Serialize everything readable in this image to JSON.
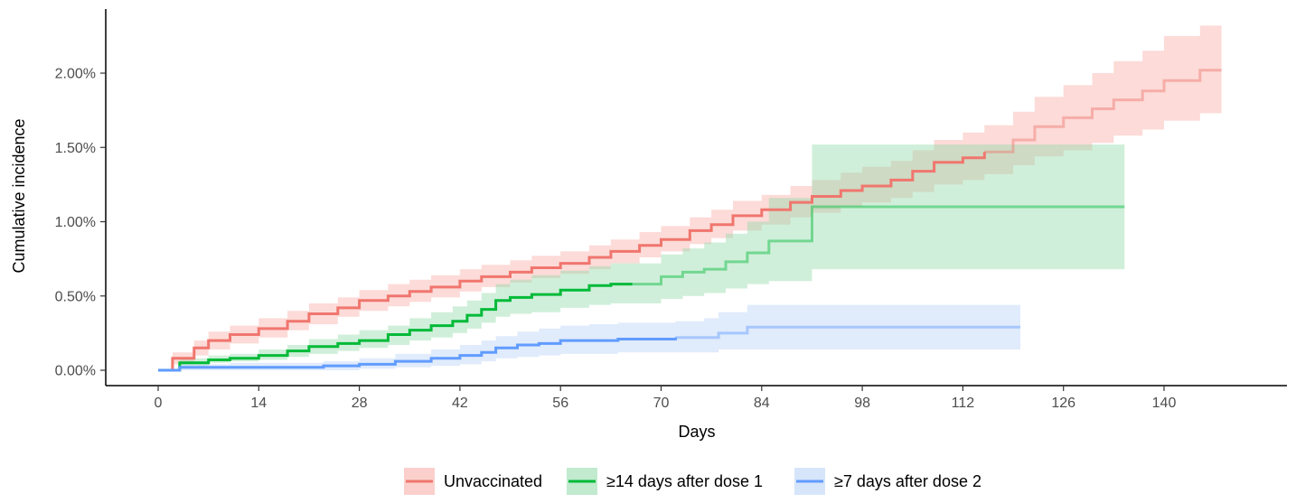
{
  "chart_data": {
    "type": "line",
    "subtype": "step-with-confidence-band",
    "xlabel": "Days",
    "ylabel": "Cumulative incidence",
    "xlim": [
      0,
      150
    ],
    "ylim": [
      -0.08,
      2.4
    ],
    "x_ticks": [
      0,
      14,
      28,
      42,
      56,
      70,
      84,
      98,
      112,
      126,
      140
    ],
    "y_ticks": [
      0,
      0.5,
      1.0,
      1.5,
      2.0
    ],
    "y_tick_labels": [
      "0.00%",
      "0.50%",
      "1.00%",
      "1.50%",
      "2.00%"
    ],
    "grid": false,
    "legend_position": "bottom",
    "series": [
      {
        "name": "Unvaccinated",
        "color": "#f0766e",
        "band_color": "#f8a9a3",
        "solid_until": 115,
        "x": [
          0,
          2,
          5,
          7,
          10,
          14,
          18,
          21,
          25,
          28,
          32,
          35,
          38,
          42,
          45,
          49,
          52,
          56,
          60,
          63,
          67,
          70,
          74,
          77,
          80,
          84,
          88,
          91,
          95,
          98,
          102,
          105,
          108,
          112,
          115,
          119,
          122,
          126,
          130,
          133,
          137,
          140,
          145,
          148
        ],
        "y": [
          0,
          0.08,
          0.15,
          0.2,
          0.24,
          0.28,
          0.33,
          0.38,
          0.42,
          0.47,
          0.5,
          0.53,
          0.56,
          0.6,
          0.63,
          0.66,
          0.69,
          0.72,
          0.76,
          0.8,
          0.84,
          0.88,
          0.94,
          0.98,
          1.04,
          1.08,
          1.13,
          1.17,
          1.21,
          1.24,
          1.28,
          1.34,
          1.4,
          1.43,
          1.47,
          1.55,
          1.64,
          1.7,
          1.76,
          1.82,
          1.88,
          1.95,
          2.02,
          2.02
        ],
        "lower": [
          0,
          0.04,
          0.1,
          0.14,
          0.18,
          0.22,
          0.27,
          0.31,
          0.36,
          0.4,
          0.43,
          0.46,
          0.49,
          0.53,
          0.56,
          0.59,
          0.62,
          0.65,
          0.68,
          0.72,
          0.76,
          0.8,
          0.85,
          0.89,
          0.94,
          0.98,
          1.03,
          1.06,
          1.1,
          1.13,
          1.16,
          1.2,
          1.25,
          1.28,
          1.32,
          1.38,
          1.44,
          1.48,
          1.53,
          1.58,
          1.62,
          1.68,
          1.73,
          1.73
        ],
        "upper": [
          0.01,
          0.12,
          0.2,
          0.26,
          0.3,
          0.35,
          0.4,
          0.45,
          0.49,
          0.54,
          0.58,
          0.61,
          0.64,
          0.68,
          0.71,
          0.74,
          0.77,
          0.8,
          0.84,
          0.88,
          0.93,
          0.97,
          1.03,
          1.08,
          1.14,
          1.18,
          1.24,
          1.28,
          1.33,
          1.37,
          1.41,
          1.48,
          1.55,
          1.6,
          1.65,
          1.74,
          1.84,
          1.92,
          2.0,
          2.08,
          2.15,
          2.25,
          2.32,
          2.32
        ]
      },
      {
        "name": "≥14 days after dose 1",
        "color": "#00ba38",
        "band_color": "#8ed9a6",
        "solid_until": 66,
        "x": [
          0,
          3,
          7,
          10,
          14,
          18,
          21,
          25,
          28,
          32,
          35,
          38,
          41,
          43,
          45,
          47,
          49,
          52,
          56,
          60,
          63,
          66,
          70,
          73,
          76,
          79,
          82,
          85,
          88,
          91,
          94,
          98,
          105,
          112,
          120,
          128,
          132,
          134.5
        ],
        "y": [
          0,
          0.05,
          0.07,
          0.08,
          0.1,
          0.13,
          0.16,
          0.18,
          0.2,
          0.24,
          0.27,
          0.3,
          0.33,
          0.37,
          0.41,
          0.47,
          0.49,
          0.51,
          0.54,
          0.57,
          0.58,
          0.58,
          0.63,
          0.66,
          0.68,
          0.73,
          0.79,
          0.87,
          0.87,
          1.1,
          1.1,
          1.1,
          1.1,
          1.1,
          1.1,
          1.1,
          1.1,
          1.1
        ],
        "lower": [
          0,
          0.03,
          0.05,
          0.06,
          0.07,
          0.09,
          0.11,
          0.13,
          0.15,
          0.17,
          0.2,
          0.22,
          0.25,
          0.28,
          0.32,
          0.36,
          0.38,
          0.39,
          0.42,
          0.44,
          0.45,
          0.45,
          0.48,
          0.5,
          0.52,
          0.55,
          0.58,
          0.6,
          0.6,
          0.68,
          0.68,
          0.68,
          0.68,
          0.68,
          0.68,
          0.68,
          0.68,
          0.68
        ],
        "upper": [
          0.01,
          0.08,
          0.1,
          0.11,
          0.14,
          0.17,
          0.21,
          0.24,
          0.27,
          0.3,
          0.35,
          0.39,
          0.43,
          0.47,
          0.52,
          0.58,
          0.61,
          0.64,
          0.67,
          0.7,
          0.72,
          0.72,
          0.78,
          0.82,
          0.86,
          0.92,
          1.0,
          1.16,
          1.16,
          1.52,
          1.52,
          1.52,
          1.52,
          1.52,
          1.52,
          1.52,
          1.52,
          1.52
        ]
      },
      {
        "name": "≥7 days after dose 2",
        "color": "#619cff",
        "band_color": "#b5cff5",
        "solid_until": 72,
        "x": [
          0,
          3,
          10,
          17,
          23,
          28,
          33,
          38,
          42,
          45,
          47,
          50,
          53,
          56,
          60,
          64,
          68,
          72,
          76,
          78,
          80,
          82,
          90,
          100,
          110,
          120
        ],
        "y": [
          0,
          0.02,
          0.02,
          0.02,
          0.03,
          0.04,
          0.06,
          0.08,
          0.1,
          0.12,
          0.15,
          0.17,
          0.18,
          0.2,
          0.2,
          0.21,
          0.21,
          0.22,
          0.22,
          0.25,
          0.25,
          0.29,
          0.29,
          0.29,
          0.29,
          0.29
        ],
        "lower": [
          0,
          0.0,
          0.0,
          0.0,
          0.0,
          0.01,
          0.02,
          0.03,
          0.04,
          0.06,
          0.08,
          0.09,
          0.1,
          0.11,
          0.11,
          0.12,
          0.12,
          0.12,
          0.12,
          0.14,
          0.14,
          0.14,
          0.14,
          0.14,
          0.14,
          0.14
        ],
        "upper": [
          0.01,
          0.04,
          0.05,
          0.05,
          0.06,
          0.08,
          0.11,
          0.14,
          0.17,
          0.2,
          0.23,
          0.26,
          0.28,
          0.3,
          0.31,
          0.32,
          0.32,
          0.33,
          0.35,
          0.39,
          0.39,
          0.44,
          0.44,
          0.44,
          0.44,
          0.44
        ]
      }
    ]
  }
}
